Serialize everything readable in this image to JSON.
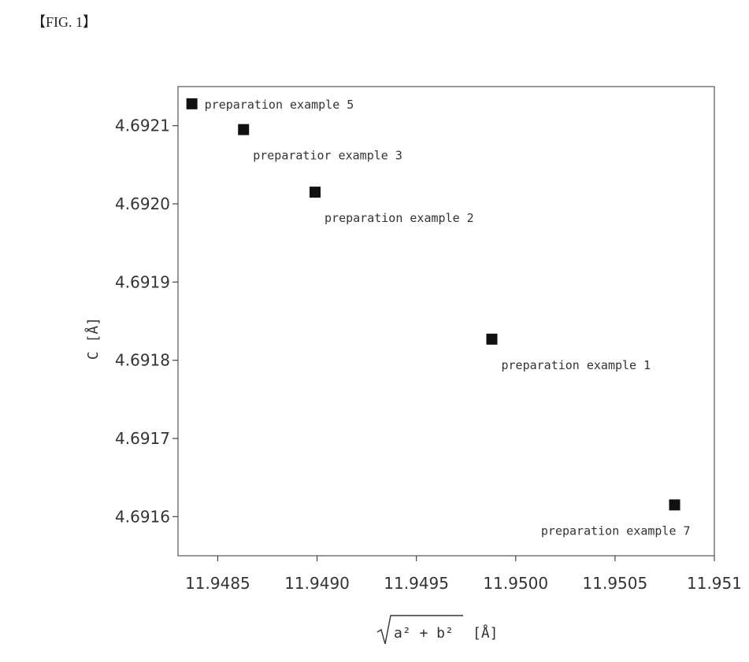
{
  "figure": {
    "label": "【FIG. 1】"
  },
  "chart_data": {
    "type": "scatter",
    "title": "",
    "xlabel": "√(a² + b²)  [Å]",
    "xlabel_parts": {
      "radicand": "a² + b²",
      "unit": "[Å]"
    },
    "ylabel": "C [Å]",
    "xlim": [
      11.9483,
      11.951
    ],
    "ylim": [
      4.69155,
      4.69215
    ],
    "xticks": [
      11.9485,
      11.949,
      11.9495,
      11.95,
      11.9505,
      11.951
    ],
    "xtick_labels": [
      "11.9485",
      "11.9490",
      "11.9495",
      "11.9500",
      "11.9505",
      "11.951"
    ],
    "yticks": [
      4.6916,
      4.6917,
      4.6918,
      4.6919,
      4.692,
      4.6921
    ],
    "ytick_labels": [
      "4.6916",
      "4.6917",
      "4.6918",
      "4.6919",
      "4.6920",
      "4.6921"
    ],
    "grid": false,
    "legend": "none",
    "marker": "square",
    "marker_color": "#111111",
    "points": [
      {
        "x": 11.94837,
        "y": 4.692128,
        "label": "preparation example 5",
        "label_pos": "right"
      },
      {
        "x": 11.94863,
        "y": 4.692095,
        "label": "preparatior example 3",
        "label_pos": "below-right"
      },
      {
        "x": 11.94899,
        "y": 4.692015,
        "label": "preparation example 2",
        "label_pos": "below-right"
      },
      {
        "x": 11.94988,
        "y": 4.691827,
        "label": "preparation example 1",
        "label_pos": "below-right"
      },
      {
        "x": 11.9508,
        "y": 4.691615,
        "label": "preparation example 7",
        "label_pos": "below-left"
      }
    ]
  }
}
